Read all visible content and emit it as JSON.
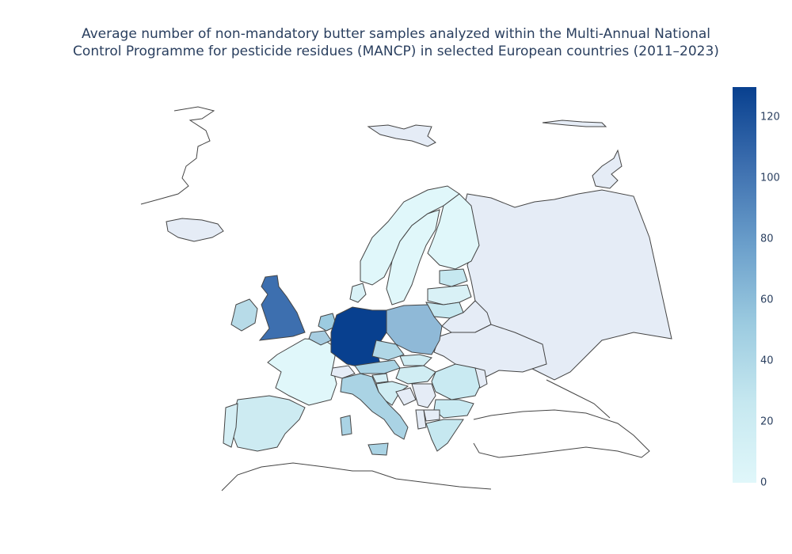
{
  "title": {
    "line1": "Average number of non-mandatory butter samples analyzed within the Multi-Annual National",
    "line2": "Control Programme for pesticide residues (MANCP) in selected European countries (2011–2023)"
  },
  "colorscale": {
    "min": 0,
    "max": 130,
    "stops": [
      "#e0f7fa",
      "#c6e8f0",
      "#9ccbe0",
      "#6b9fcb",
      "#3d6faf",
      "#08408f"
    ],
    "no_data_color": "#e5ecf6",
    "border_color": "#444444",
    "ticks": [
      "0",
      "20",
      "40",
      "60",
      "80",
      "100",
      "120"
    ],
    "tick_values": [
      0,
      20,
      40,
      60,
      80,
      100,
      120
    ]
  },
  "countries": [
    {
      "name": "Germany",
      "value": 130
    },
    {
      "name": "United Kingdom",
      "value": 95
    },
    {
      "name": "Poland",
      "value": 50
    },
    {
      "name": "Netherlands",
      "value": 45
    },
    {
      "name": "Belgium",
      "value": 40
    },
    {
      "name": "Austria",
      "value": 30
    },
    {
      "name": "Italy",
      "value": 30
    },
    {
      "name": "Czechia",
      "value": 25
    },
    {
      "name": "Ireland",
      "value": 25
    },
    {
      "name": "Lithuania",
      "value": 20
    },
    {
      "name": "Romania",
      "value": 15
    },
    {
      "name": "Greece",
      "value": 15
    },
    {
      "name": "Spain",
      "value": 12
    },
    {
      "name": "Bulgaria",
      "value": 12
    },
    {
      "name": "Slovakia",
      "value": 10
    },
    {
      "name": "Hungary",
      "value": 10
    },
    {
      "name": "Croatia",
      "value": 10
    },
    {
      "name": "Slovenia",
      "value": 8
    },
    {
      "name": "Portugal",
      "value": 8
    },
    {
      "name": "Latvia",
      "value": 8
    },
    {
      "name": "Estonia",
      "value": 8
    },
    {
      "name": "Denmark",
      "value": 5
    },
    {
      "name": "France",
      "value": 5
    },
    {
      "name": "Finland",
      "value": 2
    },
    {
      "name": "Sweden",
      "value": 2
    },
    {
      "name": "Norway",
      "value": 2
    }
  ],
  "no_data_countries": [
    "Russia",
    "Iceland",
    "Belarus",
    "Ukraine",
    "Switzerland",
    "Moldova",
    "Serbia",
    "Bosnia and Herzegovina",
    "Albania",
    "North Macedonia",
    "Svalbard",
    "Turkey"
  ]
}
